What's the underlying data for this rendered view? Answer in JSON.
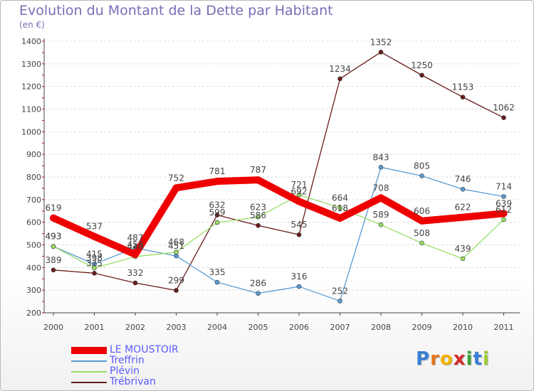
{
  "title": "Evolution du Montant de la Dette par Habitant",
  "subtitle": "(en €)",
  "logo": {
    "letters": [
      "P",
      "r",
      "o",
      "x",
      "i",
      "t",
      "i"
    ],
    "colors": [
      "#3a7fd5",
      "#e8751a",
      "#f2b300",
      "#d62a2a",
      "#3aa53a",
      "#3a7fd5",
      "#9acd32"
    ]
  },
  "chart_data": {
    "type": "line",
    "title": "Evolution du Montant de la Dette par Habitant",
    "ylabel": "(en €)",
    "categories": [
      "2000",
      "2001",
      "2002",
      "2003",
      "2004",
      "2005",
      "2006",
      "2007",
      "2008",
      "2009",
      "2010",
      "2011"
    ],
    "ylim": [
      200,
      1400
    ],
    "yticks": [
      200,
      300,
      400,
      500,
      600,
      700,
      800,
      900,
      1000,
      1100,
      1200,
      1300,
      1400
    ],
    "grid": true,
    "legend_position": "bottom-left",
    "series": [
      {
        "name": "LE MOUSTOIR",
        "color": "#ee0000",
        "width": 10,
        "values": [
          619,
          537,
          458,
          752,
          781,
          787,
          692,
          618,
          708,
          606,
          622,
          639
        ]
      },
      {
        "name": "Treffrin",
        "color": "#5a9bd4",
        "width": 1.3,
        "values": [
          493,
          415,
          487,
          451,
          335,
          286,
          316,
          252,
          843,
          805,
          746,
          714
        ]
      },
      {
        "name": "Plévin",
        "color": "#99dd66",
        "width": 1.3,
        "values": [
          493,
          398,
          448,
          468,
          599,
          623,
          721,
          664,
          589,
          508,
          439,
          612
        ]
      },
      {
        "name": "Trébrivan",
        "color": "#6b1c1c",
        "width": 1.3,
        "values": [
          389,
          375,
          332,
          299,
          632,
          586,
          545,
          1234,
          1352,
          1250,
          1153,
          1062
        ]
      }
    ],
    "point_labels": [
      [
        "619",
        "537",
        "458",
        "752",
        "781",
        "787",
        "692",
        "618",
        "708",
        "606",
        "622",
        "639"
      ],
      [
        "493",
        "415",
        "487",
        "451",
        "335",
        "286",
        "316",
        "252",
        "843",
        "805",
        "746",
        "714"
      ],
      [
        "493",
        "398",
        "448",
        "468",
        "599",
        "623",
        "721",
        "664",
        "589",
        "508",
        "439",
        "612"
      ],
      [
        "389",
        "375",
        "332",
        "299",
        "632",
        "586",
        "545",
        "1234",
        "1352",
        "1250",
        "1153",
        "1062"
      ]
    ]
  }
}
